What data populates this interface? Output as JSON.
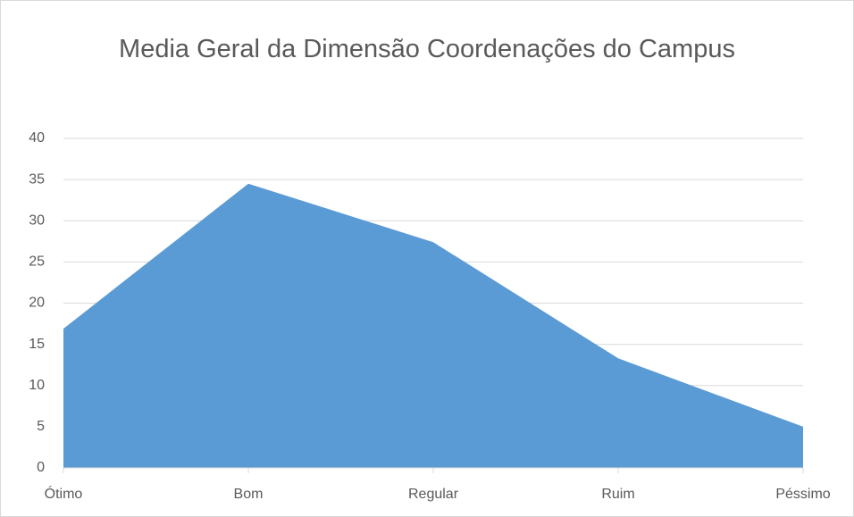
{
  "chart_data": {
    "type": "area",
    "title": "Media Geral da Dimensão Coordenações do Campus",
    "categories": [
      "Ótimo",
      "Bom",
      "Regular",
      "Ruim",
      "Péssimo"
    ],
    "values": [
      16.9,
      34.5,
      27.4,
      13.3,
      5.0
    ],
    "color": "#5b9bd5",
    "ylim": [
      0,
      40
    ],
    "yticks": [
      0,
      5,
      10,
      15,
      20,
      25,
      30,
      35,
      40
    ],
    "grid": true
  }
}
